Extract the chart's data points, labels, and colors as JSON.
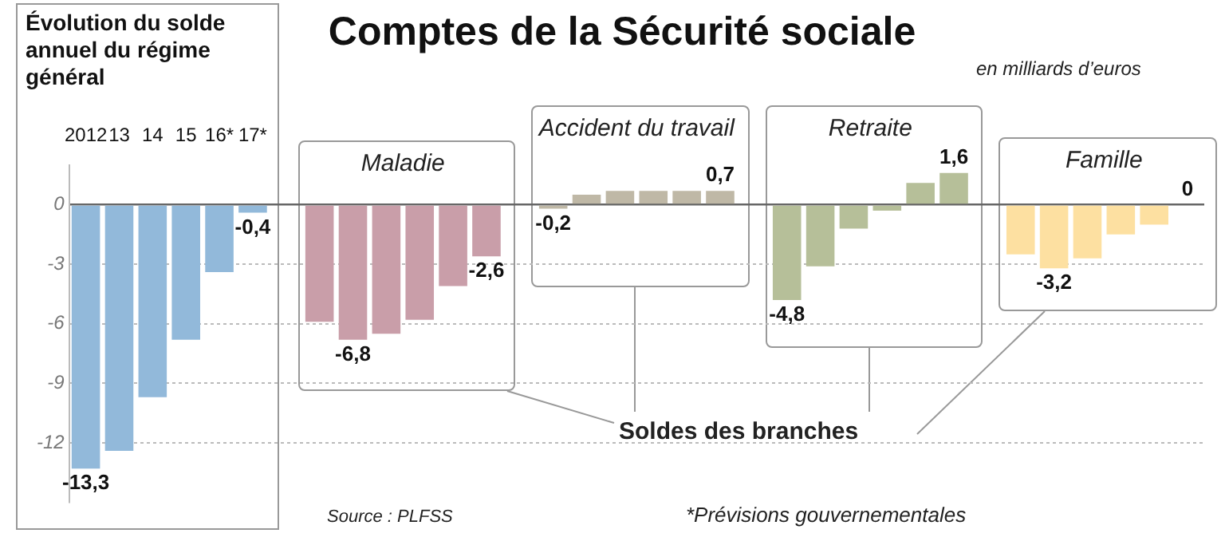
{
  "chart_data": {
    "type": "bar",
    "title": "Comptes de la Sécurité sociale",
    "subtitle": "Évolution du solde annuel du régime général",
    "categories": [
      "2012",
      "13",
      "14",
      "15",
      "16*",
      "17*",
      null,
      null,
      null,
      null,
      null,
      null,
      null,
      null,
      null,
      null,
      null,
      null,
      null,
      null,
      null,
      null,
      null,
      null,
      null,
      null,
      null,
      null,
      null,
      null,
      null,
      null,
      null,
      null
    ],
    "series": [
      {
        "color": "#92b9da",
        "values": [
          -13.3,
          -12.4,
          -9.7,
          -6.8,
          -3.4,
          -0.4,
          null,
          null,
          null,
          null,
          null,
          null,
          null,
          null,
          null,
          null,
          null,
          null,
          null,
          null,
          null,
          null,
          null,
          null,
          null,
          null,
          null,
          null,
          null,
          null,
          null,
          null,
          null,
          null
        ],
        "value_labels": [
          "-13,3",
          null,
          null,
          null,
          null,
          "-0,4",
          null,
          null,
          null,
          null,
          null,
          null,
          null,
          null,
          null,
          null,
          null,
          null,
          null,
          null,
          null,
          null,
          null,
          null,
          null,
          null,
          null,
          null,
          null,
          null,
          null,
          null,
          null,
          null
        ]
      },
      {
        "name": "Maladie",
        "color": "#c99ea9",
        "values": [
          null,
          null,
          null,
          null,
          null,
          null,
          null,
          -5.9,
          -6.8,
          -6.5,
          -5.8,
          -4.1,
          -2.6,
          null,
          null,
          null,
          null,
          null,
          null,
          null,
          null,
          null,
          null,
          null,
          null,
          null,
          null,
          null,
          null,
          null,
          null,
          null,
          null,
          null
        ],
        "value_labels": [
          null,
          null,
          null,
          null,
          null,
          null,
          null,
          null,
          "-6,8",
          null,
          null,
          null,
          "-2,6",
          null,
          null,
          null,
          null,
          null,
          null,
          null,
          null,
          null,
          null,
          null,
          null,
          null,
          null,
          null,
          null,
          null,
          null,
          null,
          null,
          null
        ]
      },
      {
        "name": "Accident du travail",
        "color": "#bfb8a6",
        "values": [
          null,
          null,
          null,
          null,
          null,
          null,
          null,
          null,
          null,
          null,
          null,
          null,
          null,
          null,
          -0.2,
          0.5,
          0.7,
          0.7,
          0.7,
          0.7,
          null,
          null,
          null,
          null,
          null,
          null,
          null,
          null,
          null,
          null,
          null,
          null,
          null,
          null
        ],
        "value_labels": [
          null,
          null,
          null,
          null,
          null,
          null,
          null,
          null,
          null,
          null,
          null,
          null,
          null,
          null,
          "-0,2",
          null,
          null,
          null,
          null,
          "0,7",
          null,
          null,
          null,
          null,
          null,
          null,
          null,
          null,
          null,
          null,
          null,
          null,
          null,
          null
        ]
      },
      {
        "name": "Retraite",
        "color": "#b6bf99",
        "values": [
          null,
          null,
          null,
          null,
          null,
          null,
          null,
          null,
          null,
          null,
          null,
          null,
          null,
          null,
          null,
          null,
          null,
          null,
          null,
          null,
          null,
          -4.8,
          -3.1,
          -1.2,
          -0.3,
          1.1,
          1.6,
          null,
          null,
          null,
          null,
          null,
          null,
          null
        ],
        "value_labels": [
          null,
          null,
          null,
          null,
          null,
          null,
          null,
          null,
          null,
          null,
          null,
          null,
          null,
          null,
          null,
          null,
          null,
          null,
          null,
          null,
          null,
          "-4,8",
          null,
          null,
          null,
          null,
          "1,6",
          null,
          null,
          null,
          null,
          null,
          null,
          null
        ]
      },
      {
        "name": "Famille",
        "color": "#fde0a1",
        "values": [
          null,
          null,
          null,
          null,
          null,
          null,
          null,
          null,
          null,
          null,
          null,
          null,
          null,
          null,
          null,
          null,
          null,
          null,
          null,
          null,
          null,
          null,
          null,
          null,
          null,
          null,
          null,
          null,
          -2.5,
          -3.2,
          -2.7,
          -1.5,
          -1.0,
          0
        ],
        "value_labels": [
          null,
          null,
          null,
          null,
          null,
          null,
          null,
          null,
          null,
          null,
          null,
          null,
          null,
          null,
          null,
          null,
          null,
          null,
          null,
          null,
          null,
          null,
          null,
          null,
          null,
          null,
          null,
          null,
          null,
          "-3,2",
          null,
          null,
          null,
          "0"
        ]
      }
    ],
    "ylim": [
      -15,
      2
    ],
    "yticks": [
      0,
      -3,
      -6,
      -9,
      -12
    ],
    "grid": "y",
    "annotations": [
      "en milliards d’euros",
      "Soldes des branches",
      "Source : PLFSS",
      "*Prévisions gouvernementales"
    ]
  }
}
